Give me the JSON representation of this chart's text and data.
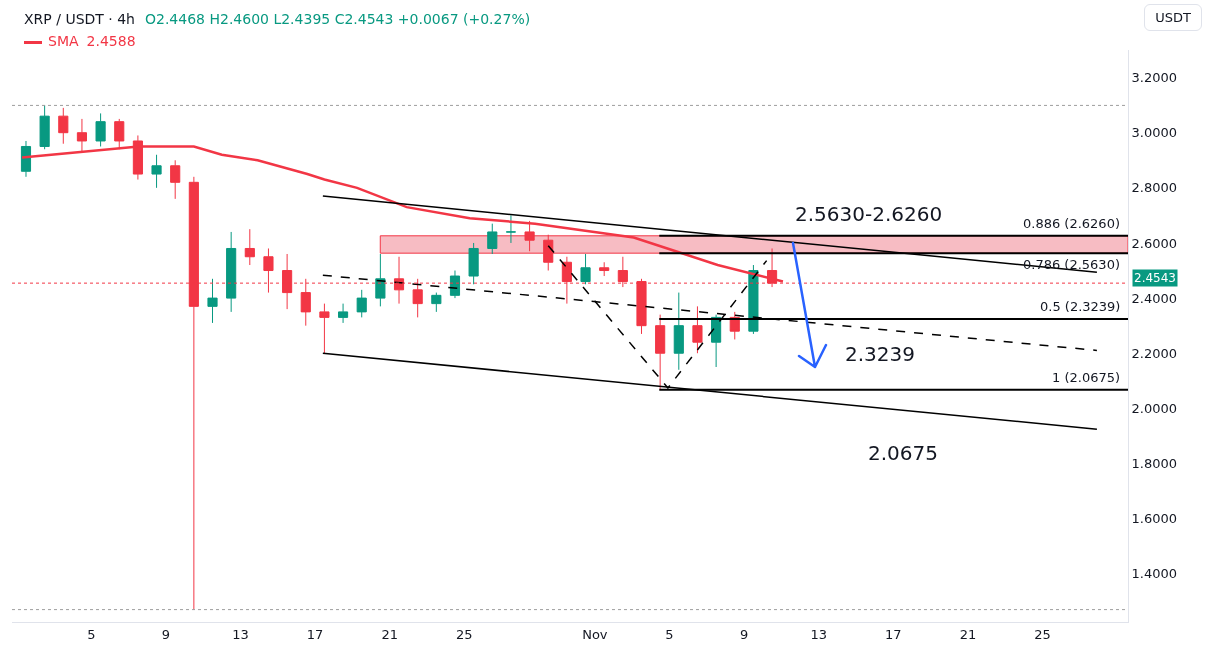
{
  "chart_data": {
    "type": "candlestick",
    "title": "XRP / USDT · 4h",
    "subtitle": "O2.4468 H2.4600 L2.4395 C2.4543 +0.0067 (+0.27%)",
    "ylabel": "USDT",
    "x": [
      "--10-01T12:00",
      "--10-02T12:00",
      "--10-03T12:00",
      "--10-04T12:00",
      "--10-05T12:00",
      "--10-06T12:00",
      "--10-07T12:00",
      "--10-08T12:00",
      "--10-09T12:00",
      "--10-10T12:00",
      "--10-11T12:00",
      "--10-12T12:00",
      "--10-13T12:00",
      "--10-14T12:00",
      "--10-15T12:00",
      "--10-16T12:00",
      "--10-17T12:00",
      "--10-18T12:00",
      "--10-19T12:00",
      "--10-20T12:00",
      "--10-21T12:00",
      "--10-22T12:00",
      "--10-23T12:00",
      "--10-24T12:00",
      "--10-25T12:00",
      "--10-26T12:00",
      "--10-27T12:00",
      "--10-28T12:00",
      "--10-29T12:00",
      "--10-30T12:00",
      "--10-31T12:00",
      "--11-01T12:00",
      "--11-02T12:00",
      "--11-03T12:00",
      "--11-04T12:00",
      "--11-05T12:00",
      "--11-06T12:00",
      "--11-07T12:00",
      "--11-08T12:00",
      "--11-09T12:00",
      "--11-10T12:00"
    ],
    "ohlc": [
      [
        2.86,
        2.97,
        2.84,
        2.95
      ],
      [
        2.95,
        3.1,
        2.94,
        3.06
      ],
      [
        3.06,
        3.09,
        2.96,
        3.0
      ],
      [
        3.0,
        3.05,
        2.93,
        2.97
      ],
      [
        2.97,
        3.07,
        2.95,
        3.04
      ],
      [
        3.04,
        3.05,
        2.94,
        2.97
      ],
      [
        2.97,
        2.99,
        2.83,
        2.85
      ],
      [
        2.85,
        2.92,
        2.8,
        2.88
      ],
      [
        2.88,
        2.9,
        2.76,
        2.82
      ],
      [
        2.82,
        2.84,
        1.27,
        2.37
      ],
      [
        2.37,
        2.47,
        2.31,
        2.4
      ],
      [
        2.4,
        2.64,
        2.35,
        2.58
      ],
      [
        2.58,
        2.65,
        2.52,
        2.55
      ],
      [
        2.55,
        2.58,
        2.42,
        2.5
      ],
      [
        2.5,
        2.56,
        2.36,
        2.42
      ],
      [
        2.42,
        2.47,
        2.3,
        2.35
      ],
      [
        2.35,
        2.38,
        2.2,
        2.33
      ],
      [
        2.33,
        2.38,
        2.31,
        2.35
      ],
      [
        2.35,
        2.43,
        2.33,
        2.4
      ],
      [
        2.4,
        2.56,
        2.37,
        2.47
      ],
      [
        2.47,
        2.55,
        2.38,
        2.43
      ],
      [
        2.43,
        2.47,
        2.33,
        2.38
      ],
      [
        2.38,
        2.42,
        2.35,
        2.41
      ],
      [
        2.41,
        2.5,
        2.4,
        2.48
      ],
      [
        2.48,
        2.6,
        2.45,
        2.58
      ],
      [
        2.58,
        2.67,
        2.56,
        2.64
      ],
      [
        2.64,
        2.7,
        2.6,
        2.64
      ],
      [
        2.64,
        2.68,
        2.57,
        2.61
      ],
      [
        2.61,
        2.63,
        2.5,
        2.53
      ],
      [
        2.53,
        2.55,
        2.38,
        2.46
      ],
      [
        2.46,
        2.56,
        2.45,
        2.51
      ],
      [
        2.51,
        2.53,
        2.48,
        2.5
      ],
      [
        2.5,
        2.55,
        2.44,
        2.46
      ],
      [
        2.46,
        2.47,
        2.27,
        2.3
      ],
      [
        2.3,
        2.34,
        2.07,
        2.2
      ],
      [
        2.2,
        2.42,
        2.14,
        2.3
      ],
      [
        2.3,
        2.37,
        2.2,
        2.24
      ],
      [
        2.24,
        2.34,
        2.15,
        2.33
      ],
      [
        2.33,
        2.35,
        2.25,
        2.28
      ],
      [
        2.28,
        2.52,
        2.27,
        2.5
      ],
      [
        2.5,
        2.58,
        2.44,
        2.4543
      ]
    ],
    "series": [
      {
        "name": "SMA",
        "type": "line",
        "color": "#f23645",
        "line_style": "solid",
        "x": [
          "--10-01T07:00",
          "--10-07T13:00",
          "--10-10T12:00",
          "--10-12T00:00",
          "--10-13T22:00",
          "--10-16T14:00",
          "--10-17T12:00",
          "--10-19T06:00",
          "--10-21T22:00",
          "--10-25T07:00",
          "--10-28T19:00",
          "--11-03T02:00",
          "--11-05T19:00",
          "--11-07T14:00",
          "--11-11T02:00"
        ],
        "values": [
          2.91,
          2.95,
          2.95,
          2.92,
          2.9,
          2.85,
          2.83,
          2.8,
          2.73,
          2.69,
          2.67,
          2.62,
          2.56,
          2.52,
          2.46
        ]
      },
      {
        "type": "line",
        "color": "#000000",
        "line_style": "solid",
        "x": [
          "--10-17T10:00",
          "--11-27T22:00"
        ],
        "values": [
          2.77,
          2.494
        ]
      },
      {
        "type": "line",
        "color": "#000000",
        "line_style": "solid",
        "x": [
          "--10-17T10:00",
          "--11-27T22:00"
        ],
        "values": [
          2.2,
          1.924
        ]
      },
      {
        "type": "line",
        "color": "#000000",
        "line_style": "dashed",
        "x": [
          "--10-17T10:00",
          "--11-27T22:00"
        ],
        "values": [
          2.483,
          2.21
        ]
      },
      {
        "type": "line",
        "color": "#000000",
        "line_style": "dashed",
        "x": [
          "--10-29T12:00",
          "--11-04T22:00",
          "--11-10T05:00"
        ],
        "values": [
          2.59,
          2.074,
          2.536
        ]
      }
    ],
    "ylim": [
      1.225,
      3.3
    ],
    "yticks": [
      {
        "value": 1.4,
        "label": "1.4000"
      },
      {
        "value": 1.6,
        "label": "1.6000"
      },
      {
        "value": 1.8,
        "label": "1.8000"
      },
      {
        "value": 2.0,
        "label": "2.0000"
      },
      {
        "value": 2.2,
        "label": "2.2000"
      },
      {
        "value": 2.4,
        "label": "2.4000"
      },
      {
        "value": 2.6,
        "label": "2.6000"
      },
      {
        "value": 2.8,
        "label": "2.8000"
      },
      {
        "value": 3.0,
        "label": "3.0000"
      },
      {
        "value": 3.2,
        "label": "3.2000"
      }
    ],
    "xlim": [
      "--09-30T18:00",
      "--11-29T14:00"
    ],
    "xticks": [
      {
        "value": "--10-05",
        "label": "5"
      },
      {
        "value": "--10-09",
        "label": "9"
      },
      {
        "value": "--10-13",
        "label": "13"
      },
      {
        "value": "--10-17",
        "label": "17"
      },
      {
        "value": "--10-21",
        "label": "21"
      },
      {
        "value": "--10-25",
        "label": "25"
      },
      {
        "value": "--11-01",
        "label": "Nov"
      },
      {
        "value": "--11-05",
        "label": "5"
      },
      {
        "value": "--11-09",
        "label": "9"
      },
      {
        "value": "--11-13",
        "label": "13"
      },
      {
        "value": "--11-17",
        "label": "17"
      },
      {
        "value": "--11-21",
        "label": "21"
      },
      {
        "value": "--11-25",
        "label": "25"
      }
    ],
    "bands": [
      {
        "axis": "y",
        "from": 2.563,
        "to": 2.626,
        "color": "#f7bcc3",
        "label": "2.5630-2.6260"
      }
    ],
    "ref_lines": [
      {
        "axis": "y",
        "value": 2.626,
        "label": "0.886 (2.6260)",
        "color": "#000000",
        "line_style": "solid"
      },
      {
        "axis": "y",
        "value": 2.563,
        "label": "0.786 (2.5630)",
        "color": "#000000",
        "line_style": "solid"
      },
      {
        "axis": "y",
        "value": 2.3239,
        "label": "0.5 (2.3239)",
        "color": "#000000",
        "line_style": "solid"
      },
      {
        "axis": "y",
        "value": 2.0675,
        "label": "1 (2.0675)",
        "color": "#000000",
        "line_style": "solid"
      },
      {
        "axis": "y",
        "value": 2.4543,
        "label": "2.4543",
        "color": "#f23645",
        "line_style": "dotted"
      },
      {
        "axis": "y",
        "value": 3.099,
        "color": "#9e9e9e",
        "line_style": "dotted"
      },
      {
        "axis": "y",
        "value": 1.27,
        "color": "#9e9e9e",
        "line_style": "dotted"
      }
    ],
    "annotations": [
      "2.4588",
      "2.3239",
      "2.0675"
    ],
    "legend": "top left"
  }
}
